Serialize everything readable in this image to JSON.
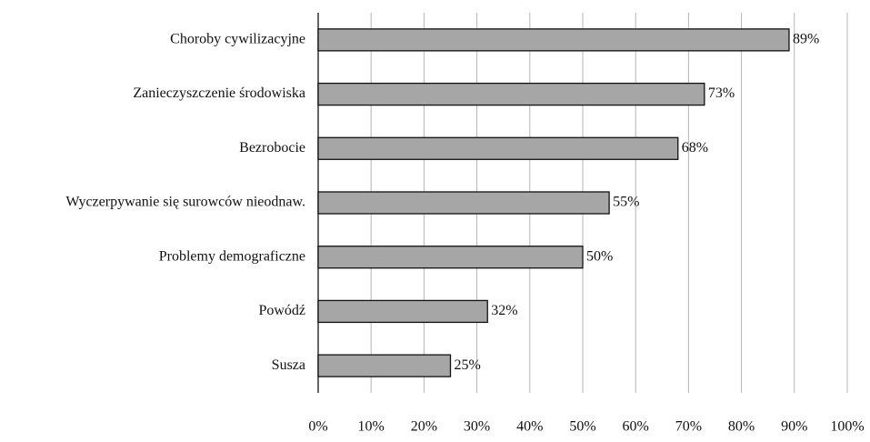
{
  "chart_data": {
    "type": "bar",
    "orientation": "horizontal",
    "categories": [
      "Choroby cywilizacyjne",
      "Zanieczyszczenie środowiska",
      "Bezrobocie",
      "Wyczerpywanie się surowców nieodnaw.",
      "Problemy demograficzne",
      "Powódź",
      "Susza"
    ],
    "values": [
      89,
      73,
      68,
      55,
      50,
      32,
      25
    ],
    "value_labels": [
      "89%",
      "73%",
      "68%",
      "55%",
      "50%",
      "32%",
      "25%"
    ],
    "color": "#a6a6a6",
    "xlim": [
      0,
      100
    ],
    "xticks": [
      {
        "value": 0,
        "label": "0%"
      },
      {
        "value": 10,
        "label": "10%"
      },
      {
        "value": 20,
        "label": "20%"
      },
      {
        "value": 30,
        "label": "30%"
      },
      {
        "value": 40,
        "label": "40%"
      },
      {
        "value": 50,
        "label": "50%"
      },
      {
        "value": 60,
        "label": "60%"
      },
      {
        "value": 70,
        "label": "70%"
      },
      {
        "value": 80,
        "label": "80%"
      },
      {
        "value": 90,
        "label": "90%"
      },
      {
        "value": 100,
        "label": "100%"
      }
    ],
    "grid": true
  }
}
